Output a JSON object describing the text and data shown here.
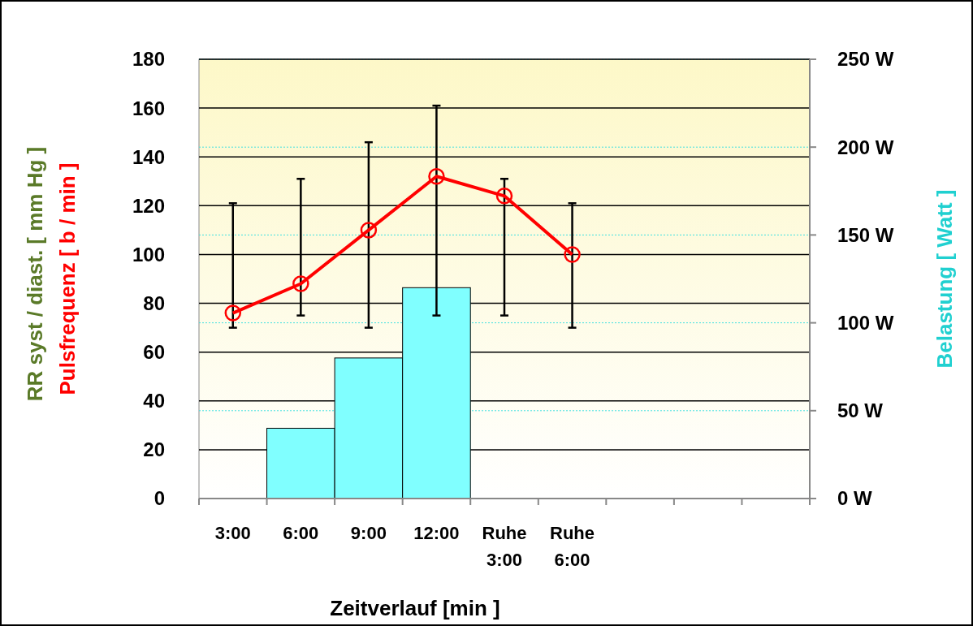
{
  "chart_data": {
    "type": "bar",
    "xlabel": "Zeitverlauf  [min ]",
    "ylabel": "Pulsfrequenz  [ b / min ]",
    "y2label": "Belastung [ Watt ]",
    "annotations": [
      "RR   syst / diast.  [ mm Hg ]"
    ],
    "categories": [
      "3:00",
      "6:00",
      "9:00",
      "12:00",
      "Ruhe 3:00",
      "Ruhe 6:00",
      null,
      null,
      null
    ],
    "series": [
      {
        "axis": "y2",
        "color": "#80ffff",
        "values": [
          null,
          40,
          80,
          120,
          null,
          null,
          null,
          null,
          null
        ]
      },
      {
        "type": "line",
        "color": "#ff0000",
        "marker": "circle",
        "values": [
          76,
          88,
          110,
          132,
          124,
          100,
          null,
          null,
          null
        ],
        "errors": [
          [
            70,
            121
          ],
          [
            75,
            131
          ],
          [
            70,
            146
          ],
          [
            75,
            161
          ],
          [
            75,
            131
          ],
          [
            70,
            121
          ],
          null,
          null,
          null
        ]
      }
    ],
    "ylim": [
      0,
      180
    ],
    "yticks": [
      0,
      20,
      40,
      60,
      80,
      100,
      120,
      140,
      160,
      180
    ],
    "y2lim": [
      0,
      250
    ],
    "y2ticks": [
      {
        "value": 0,
        "label": "0 W"
      },
      {
        "value": 50,
        "label": "50 W"
      },
      {
        "value": 100,
        "label": "100 W"
      },
      {
        "value": 150,
        "label": "150 W"
      },
      {
        "value": 200,
        "label": "200 W"
      },
      {
        "value": 250,
        "label": "250 W"
      }
    ],
    "grid": true
  }
}
